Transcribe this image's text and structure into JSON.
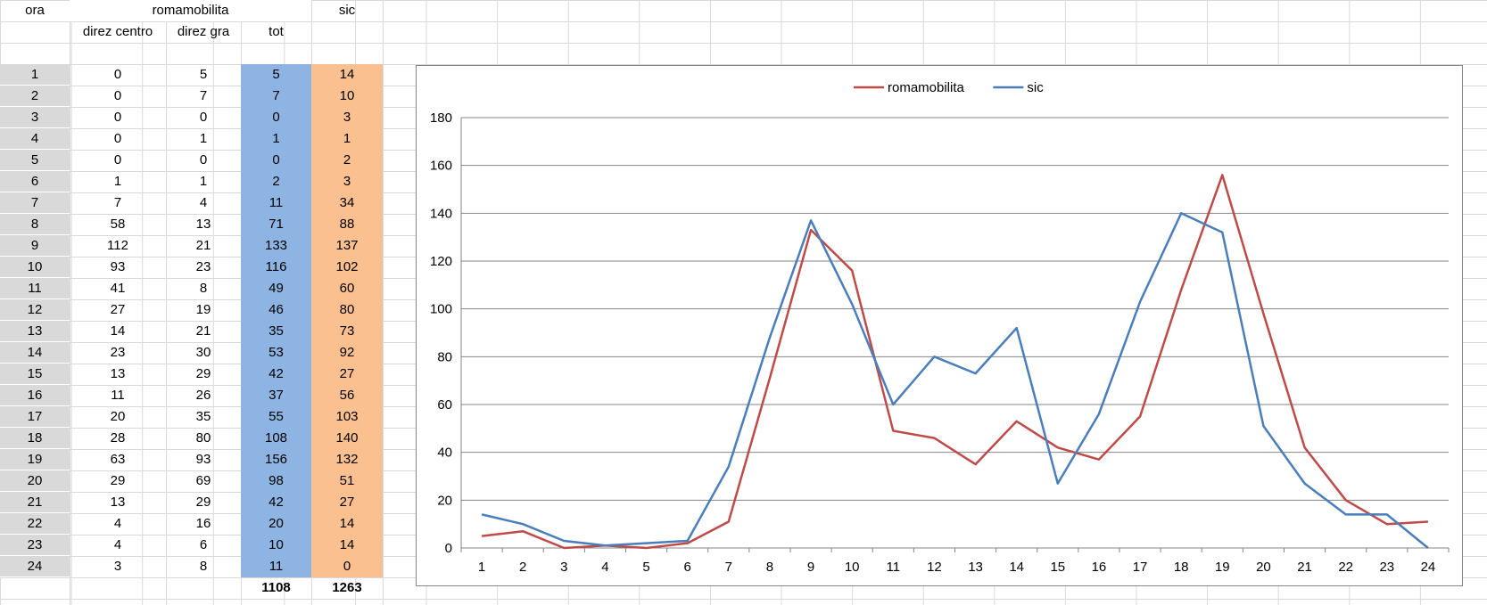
{
  "header": {
    "ora": "ora",
    "romamobilita": "romamobilita",
    "sic": "sic",
    "direz_centro": "direz centro",
    "direz_gra": "direz gra",
    "tot": "tot"
  },
  "rows": [
    {
      "ora": "1",
      "dc": "0",
      "dg": "5",
      "tot": "5",
      "sic": "14"
    },
    {
      "ora": "2",
      "dc": "0",
      "dg": "7",
      "tot": "7",
      "sic": "10"
    },
    {
      "ora": "3",
      "dc": "0",
      "dg": "0",
      "tot": "0",
      "sic": "3"
    },
    {
      "ora": "4",
      "dc": "0",
      "dg": "1",
      "tot": "1",
      "sic": "1"
    },
    {
      "ora": "5",
      "dc": "0",
      "dg": "0",
      "tot": "0",
      "sic": "2"
    },
    {
      "ora": "6",
      "dc": "1",
      "dg": "1",
      "tot": "2",
      "sic": "3"
    },
    {
      "ora": "7",
      "dc": "7",
      "dg": "4",
      "tot": "11",
      "sic": "34"
    },
    {
      "ora": "8",
      "dc": "58",
      "dg": "13",
      "tot": "71",
      "sic": "88"
    },
    {
      "ora": "9",
      "dc": "112",
      "dg": "21",
      "tot": "133",
      "sic": "137"
    },
    {
      "ora": "10",
      "dc": "93",
      "dg": "23",
      "tot": "116",
      "sic": "102"
    },
    {
      "ora": "11",
      "dc": "41",
      "dg": "8",
      "tot": "49",
      "sic": "60"
    },
    {
      "ora": "12",
      "dc": "27",
      "dg": "19",
      "tot": "46",
      "sic": "80"
    },
    {
      "ora": "13",
      "dc": "14",
      "dg": "21",
      "tot": "35",
      "sic": "73"
    },
    {
      "ora": "14",
      "dc": "23",
      "dg": "30",
      "tot": "53",
      "sic": "92"
    },
    {
      "ora": "15",
      "dc": "13",
      "dg": "29",
      "tot": "42",
      "sic": "27"
    },
    {
      "ora": "16",
      "dc": "11",
      "dg": "26",
      "tot": "37",
      "sic": "56"
    },
    {
      "ora": "17",
      "dc": "20",
      "dg": "35",
      "tot": "55",
      "sic": "103"
    },
    {
      "ora": "18",
      "dc": "28",
      "dg": "80",
      "tot": "108",
      "sic": "140"
    },
    {
      "ora": "19",
      "dc": "63",
      "dg": "93",
      "tot": "156",
      "sic": "132"
    },
    {
      "ora": "20",
      "dc": "29",
      "dg": "69",
      "tot": "98",
      "sic": "51"
    },
    {
      "ora": "21",
      "dc": "13",
      "dg": "29",
      "tot": "42",
      "sic": "27"
    },
    {
      "ora": "22",
      "dc": "4",
      "dg": "16",
      "tot": "20",
      "sic": "14"
    },
    {
      "ora": "23",
      "dc": "4",
      "dg": "6",
      "tot": "10",
      "sic": "14"
    },
    {
      "ora": "24",
      "dc": "3",
      "dg": "8",
      "tot": "11",
      "sic": "0"
    }
  ],
  "totals": {
    "tot": "1108",
    "sic": "1263"
  },
  "colors": {
    "ora_fill": "#d9d9d9",
    "tot_fill": "#8db4e2",
    "sic_fill": "#fac090",
    "series_romamobilita": "#be4b48",
    "series_sic": "#4a7ebb"
  },
  "chart_data": {
    "type": "line",
    "categories": [
      "1",
      "2",
      "3",
      "4",
      "5",
      "6",
      "7",
      "8",
      "9",
      "10",
      "11",
      "12",
      "13",
      "14",
      "15",
      "16",
      "17",
      "18",
      "19",
      "20",
      "21",
      "22",
      "23",
      "24"
    ],
    "series": [
      {
        "name": "romamobilita",
        "color": "#be4b48",
        "values": [
          5,
          7,
          0,
          1,
          0,
          2,
          11,
          71,
          133,
          116,
          49,
          46,
          35,
          53,
          42,
          37,
          55,
          108,
          156,
          98,
          42,
          20,
          10,
          11
        ]
      },
      {
        "name": "sic",
        "color": "#4a7ebb",
        "values": [
          14,
          10,
          3,
          1,
          2,
          3,
          34,
          88,
          137,
          102,
          60,
          80,
          73,
          92,
          27,
          56,
          103,
          140,
          132,
          51,
          27,
          14,
          14,
          0
        ]
      }
    ],
    "ylim": [
      0,
      180
    ],
    "yticks": [
      0,
      20,
      40,
      60,
      80,
      100,
      120,
      140,
      160,
      180
    ],
    "grid": true,
    "legend_position": "top",
    "title": "",
    "xlabel": "",
    "ylabel": ""
  }
}
